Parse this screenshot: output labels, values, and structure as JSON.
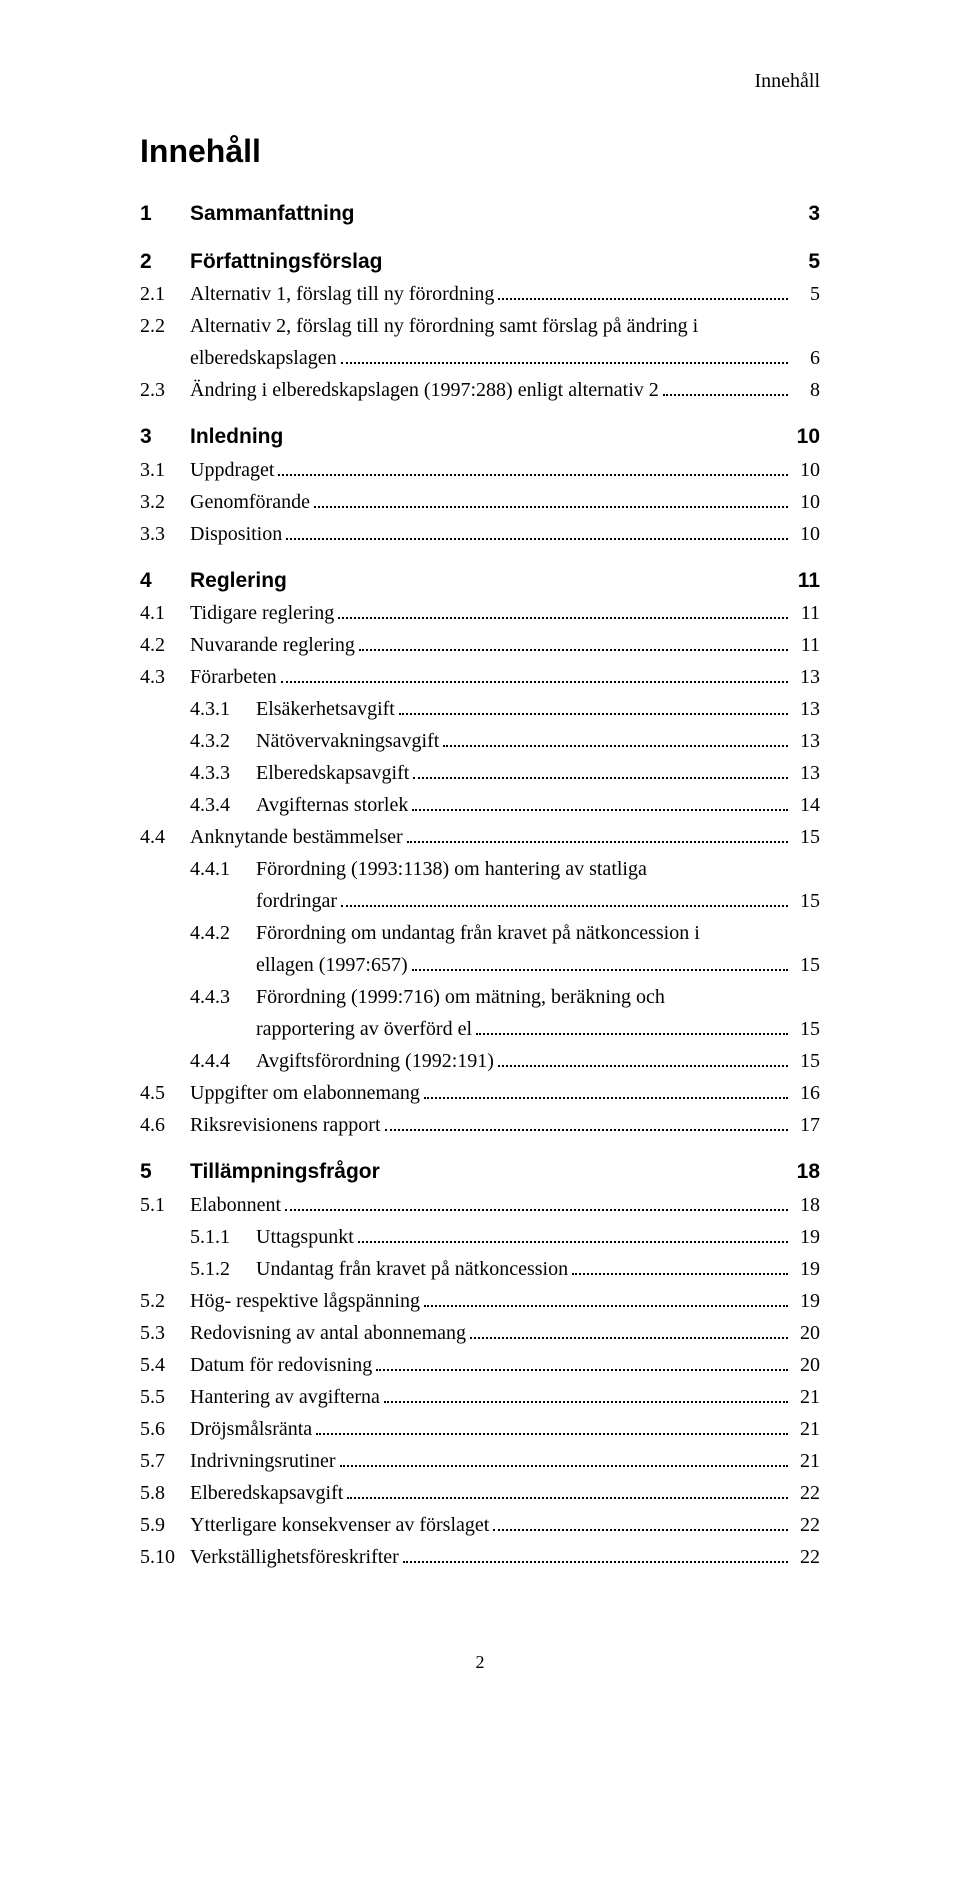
{
  "running_header": "Innehåll",
  "main_title": "Innehåll",
  "footer_page_number": "2",
  "toc": [
    {
      "level": 1,
      "num": "1",
      "title": "Sammanfattning",
      "page": "3",
      "leader": false
    },
    {
      "level": 1,
      "num": "2",
      "title": "Författningsförslag",
      "page": "5",
      "leader": false
    },
    {
      "level": 2,
      "num": "2.1",
      "title": "Alternativ 1, förslag till ny förordning",
      "page": "5",
      "leader": true
    },
    {
      "level": 2,
      "num": "2.2",
      "title": "Alternativ 2, förslag till ny förordning samt förslag på ändring i",
      "wrapTo": "elberedskapslagen",
      "page": "6",
      "leader": true
    },
    {
      "level": 2,
      "num": "2.3",
      "title": "Ändring i elberedskapslagen (1997:288) enligt alternativ 2",
      "page": "8",
      "leader": true
    },
    {
      "level": 1,
      "num": "3",
      "title": "Inledning",
      "page": "10",
      "leader": false
    },
    {
      "level": 2,
      "num": "3.1",
      "title": "Uppdraget",
      "page": "10",
      "leader": true
    },
    {
      "level": 2,
      "num": "3.2",
      "title": "Genomförande",
      "page": "10",
      "leader": true
    },
    {
      "level": 2,
      "num": "3.3",
      "title": "Disposition",
      "page": "10",
      "leader": true
    },
    {
      "level": 1,
      "num": "4",
      "title": "Reglering",
      "page": "11",
      "leader": false
    },
    {
      "level": 2,
      "num": "4.1",
      "title": "Tidigare reglering",
      "page": "11",
      "leader": true
    },
    {
      "level": 2,
      "num": "4.2",
      "title": "Nuvarande reglering",
      "page": "11",
      "leader": true
    },
    {
      "level": 2,
      "num": "4.3",
      "title": "Förarbeten",
      "page": "13",
      "leader": true
    },
    {
      "level": 3,
      "num": "4.3.1",
      "title": "Elsäkerhetsavgift",
      "page": "13",
      "leader": true
    },
    {
      "level": 3,
      "num": "4.3.2",
      "title": "Nätövervakningsavgift",
      "page": "13",
      "leader": true
    },
    {
      "level": 3,
      "num": "4.3.3",
      "title": "Elberedskapsavgift",
      "page": "13",
      "leader": true
    },
    {
      "level": 3,
      "num": "4.3.4",
      "title": "Avgifternas storlek",
      "page": "14",
      "leader": true
    },
    {
      "level": 2,
      "num": "4.4",
      "title": "Anknytande bestämmelser",
      "page": "15",
      "leader": true
    },
    {
      "level": 3,
      "num": "4.4.1",
      "title": "Förordning (1993:1138) om hantering av statliga",
      "wrapTo": "fordringar",
      "page": "15",
      "leader": true
    },
    {
      "level": 3,
      "num": "4.4.2",
      "title": "Förordning om undantag från kravet på nätkoncession i",
      "wrapTo": "ellagen (1997:657)",
      "page": "15",
      "leader": true
    },
    {
      "level": 3,
      "num": "4.4.3",
      "title": "Förordning (1999:716) om mätning, beräkning och",
      "wrapTo": "rapportering av överförd el",
      "page": "15",
      "leader": true
    },
    {
      "level": 3,
      "num": "4.4.4",
      "title": "Avgiftsförordning (1992:191)",
      "page": "15",
      "leader": true
    },
    {
      "level": 2,
      "num": "4.5",
      "title": "Uppgifter om elabonnemang",
      "page": "16",
      "leader": true
    },
    {
      "level": 2,
      "num": "4.6",
      "title": "Riksrevisionens rapport",
      "page": "17",
      "leader": true
    },
    {
      "level": 1,
      "num": "5",
      "title": "Tillämpningsfrågor",
      "page": "18",
      "leader": false
    },
    {
      "level": 2,
      "num": "5.1",
      "title": "Elabonnent",
      "page": "18",
      "leader": true
    },
    {
      "level": 3,
      "num": "5.1.1",
      "title": "Uttagspunkt",
      "page": "19",
      "leader": true
    },
    {
      "level": 3,
      "num": "5.1.2",
      "title": "Undantag från kravet på nätkoncession",
      "page": "19",
      "leader": true
    },
    {
      "level": 2,
      "num": "5.2",
      "title": "Hög- respektive lågspänning",
      "page": "19",
      "leader": true
    },
    {
      "level": 2,
      "num": "5.3",
      "title": "Redovisning av antal abonnemang",
      "page": "20",
      "leader": true
    },
    {
      "level": 2,
      "num": "5.4",
      "title": "Datum för redovisning",
      "page": "20",
      "leader": true
    },
    {
      "level": 2,
      "num": "5.5",
      "title": "Hantering av avgifterna",
      "page": "21",
      "leader": true
    },
    {
      "level": 2,
      "num": "5.6",
      "title": "Dröjsmålsränta",
      "page": "21",
      "leader": true
    },
    {
      "level": 2,
      "num": "5.7",
      "title": "Indrivningsrutiner",
      "page": "21",
      "leader": true
    },
    {
      "level": 2,
      "num": "5.8",
      "title": "Elberedskapsavgift",
      "page": "22",
      "leader": true
    },
    {
      "level": 2,
      "num": "5.9",
      "title": "Ytterligare konsekvenser av förslaget",
      "page": "22",
      "leader": true
    },
    {
      "level": 2,
      "num": "5.10",
      "title": "Verkställighetsföreskrifter",
      "page": "22",
      "leader": true
    }
  ]
}
